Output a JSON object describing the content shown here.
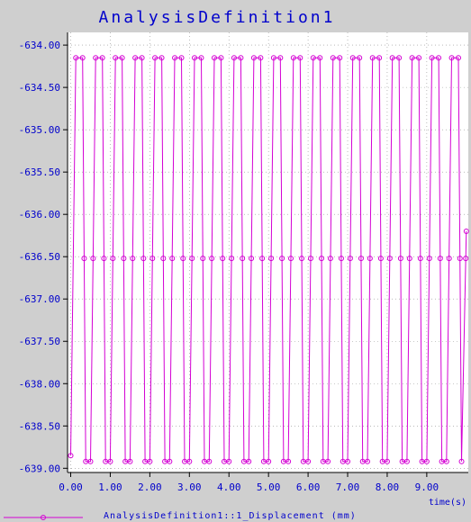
{
  "colors": {
    "background": "#cfcfcf",
    "plot_background": "#ffffff",
    "series": "#d400d4",
    "text": "#0000cc",
    "grid": "#909090",
    "axis": "#000000"
  },
  "chart_data": {
    "type": "line",
    "title": "AnalysisDefinition1",
    "xlabel": "time(s)",
    "ylabel": "",
    "xlim": [
      -0.08,
      10.05
    ],
    "ylim": [
      -639.05,
      -633.85
    ],
    "xticks": [
      "0.00",
      "1.00",
      "2.00",
      "3.00",
      "4.00",
      "5.00",
      "6.00",
      "7.00",
      "8.00",
      "9.00"
    ],
    "yticks": [
      "-634.00",
      "-634.50",
      "-635.00",
      "-635.50",
      "-636.00",
      "-636.50",
      "-637.00",
      "-637.50",
      "-638.00",
      "-638.50",
      "-639.00"
    ],
    "grid": true,
    "legend_position": "bottom",
    "series": [
      {
        "name": "AnalysisDefinition1::1_Displacement (mm)",
        "marker": "circle",
        "period_s": 0.5,
        "max": -634.15,
        "min": -638.92,
        "mean": -636.52,
        "x": [
          0.0,
          0.13,
          0.3,
          0.38,
          0.5,
          0.63,
          0.8,
          0.88,
          1.0,
          1.13,
          1.3,
          1.38,
          1.5,
          1.63,
          1.8,
          1.88,
          2.0,
          2.13,
          2.3,
          2.38,
          2.5,
          2.63,
          2.8,
          2.88,
          3.0,
          3.13,
          3.3,
          3.38,
          3.5,
          3.63,
          3.8,
          3.88,
          4.0,
          4.13,
          4.3,
          4.38,
          4.5,
          4.63,
          4.8,
          4.88,
          5.0,
          5.13,
          5.3,
          5.38,
          5.5,
          5.63,
          5.8,
          5.88,
          6.0,
          6.13,
          6.3,
          6.38,
          6.5,
          6.63,
          6.8,
          6.88,
          7.0,
          7.13,
          7.3,
          7.38,
          7.5,
          7.63,
          7.8,
          7.88,
          8.0,
          8.13,
          8.3,
          8.38,
          8.5,
          8.63,
          8.8,
          8.88,
          9.0,
          9.13,
          9.3,
          9.38,
          9.5,
          9.63,
          9.8,
          9.88,
          10.0
        ],
        "y": [
          -638.85,
          -634.15,
          -634.15,
          -638.92,
          -638.92,
          -634.15,
          -634.15,
          -638.92,
          -638.92,
          -634.15,
          -634.15,
          -638.92,
          -638.92,
          -634.15,
          -634.15,
          -638.92,
          -638.92,
          -634.15,
          -634.15,
          -638.92,
          -638.92,
          -634.15,
          -634.15,
          -638.92,
          -638.92,
          -634.15,
          -634.15,
          -638.92,
          -638.92,
          -634.15,
          -634.15,
          -638.92,
          -638.92,
          -634.15,
          -634.15,
          -638.92,
          -638.92,
          -634.15,
          -634.15,
          -638.92,
          -638.92,
          -634.15,
          -634.15,
          -638.92,
          -638.92,
          -634.15,
          -634.15,
          -638.92,
          -638.92,
          -634.15,
          -634.15,
          -638.92,
          -638.92,
          -634.15,
          -634.15,
          -638.92,
          -638.92,
          -634.15,
          -634.15,
          -638.92,
          -638.92,
          -634.15,
          -634.15,
          -638.92,
          -638.92,
          -634.15,
          -634.15,
          -638.92,
          -638.92,
          -634.15,
          -634.15,
          -638.92,
          -638.92,
          -634.15,
          -634.15,
          -638.92,
          -638.92,
          -634.15,
          -634.15,
          -638.92,
          -636.2
        ]
      }
    ]
  }
}
